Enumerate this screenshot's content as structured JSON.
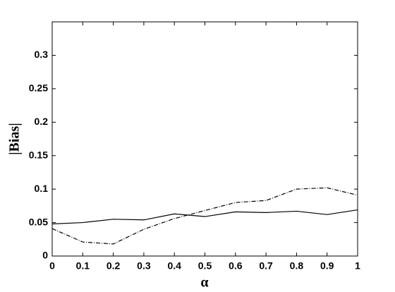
{
  "chart_data": {
    "type": "line",
    "xlabel": "α",
    "ylabel": "|Bias|",
    "x": [
      0,
      0.1,
      0.2,
      0.3,
      0.4,
      0.5,
      0.6,
      0.7,
      0.8,
      0.9,
      1
    ],
    "series": [
      {
        "color": "#000000",
        "dash": "solid",
        "values": [
          0.048,
          0.05,
          0.055,
          0.054,
          0.063,
          0.059,
          0.066,
          0.065,
          0.067,
          0.062,
          0.069
        ]
      },
      {
        "color": "#000000",
        "dash": "dashdot",
        "values": [
          0.041,
          0.021,
          0.018,
          0.04,
          0.056,
          0.068,
          0.08,
          0.083,
          0.1,
          0.102,
          0.091
        ]
      }
    ],
    "xlim": [
      0,
      1
    ],
    "xticks": [
      0,
      0.1,
      0.2,
      0.3,
      0.4,
      0.5,
      0.6,
      0.7,
      0.8,
      0.9,
      1
    ],
    "ylim": [
      0,
      0.35
    ],
    "yticks": [
      0,
      0.05,
      0.1,
      0.15,
      0.2,
      0.25,
      0.3
    ],
    "grid": false
  }
}
